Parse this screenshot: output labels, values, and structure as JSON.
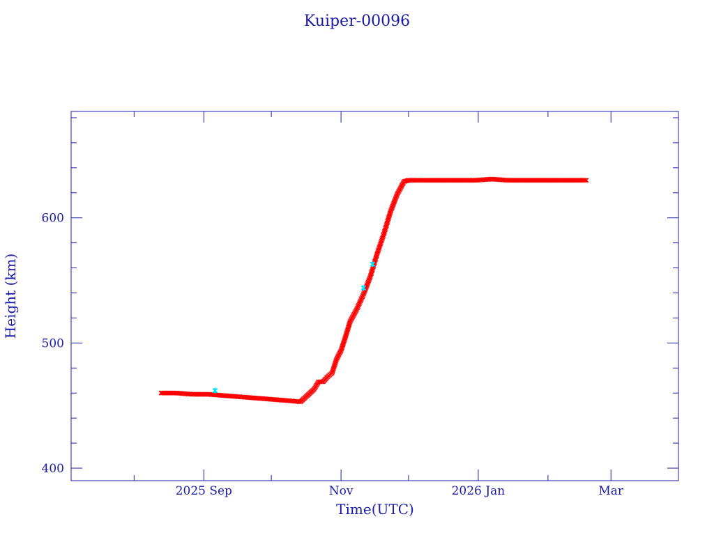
{
  "chart_data": {
    "type": "scatter",
    "title": "Kuiper-00096",
    "xlabel": "Time(UTC)",
    "ylabel": "Height (km)",
    "x_ticks": [
      "2025 Sep",
      "Nov",
      "2026 Jan",
      "Mar"
    ],
    "x_tick_dates": [
      "2025-09-01",
      "2025-11-01",
      "2026-01-01",
      "2026-03-01"
    ],
    "xlim": [
      "2025-07-04",
      "2026-03-31"
    ],
    "y_ticks": [
      400,
      500,
      600
    ],
    "ylim": [
      390,
      685
    ],
    "grid": false,
    "colors": {
      "axes": "#1a1aa6",
      "series": "#ff0000",
      "highlight": "#00e5ff"
    },
    "series": [
      {
        "marker": "x",
        "x": [
          "2025-08-13",
          "2025-08-20",
          "2025-08-27",
          "2025-09-03",
          "2025-09-10",
          "2025-09-17",
          "2025-09-24",
          "2025-10-01",
          "2025-10-08",
          "2025-10-14",
          "2025-10-17",
          "2025-10-20",
          "2025-10-22",
          "2025-10-24",
          "2025-10-26",
          "2025-10-28",
          "2025-10-30",
          "2025-11-01",
          "2025-11-03",
          "2025-11-05",
          "2025-11-08",
          "2025-11-11",
          "2025-11-14",
          "2025-11-17",
          "2025-11-20",
          "2025-11-23",
          "2025-11-26",
          "2025-11-29",
          "2025-12-01",
          "2025-12-04",
          "2025-12-10",
          "2025-12-17",
          "2025-12-24",
          "2025-12-31",
          "2026-01-07",
          "2026-01-14",
          "2026-01-21",
          "2026-01-28",
          "2026-02-04",
          "2026-02-11",
          "2026-02-18"
        ],
        "y": [
          460,
          460,
          459,
          459,
          458,
          457,
          456,
          455,
          454,
          453,
          458,
          463,
          469,
          469,
          473,
          476,
          487,
          494,
          505,
          517,
          527,
          539,
          553,
          571,
          587,
          605,
          619,
          629,
          630,
          630,
          630,
          630,
          630,
          630,
          631,
          630,
          630,
          630,
          630,
          630,
          630
        ]
      }
    ],
    "highlights": [
      {
        "x": "2025-09-06",
        "y": 462
      },
      {
        "x": "2025-11-11",
        "y": 544
      },
      {
        "x": "2025-11-15",
        "y": 563
      }
    ]
  }
}
